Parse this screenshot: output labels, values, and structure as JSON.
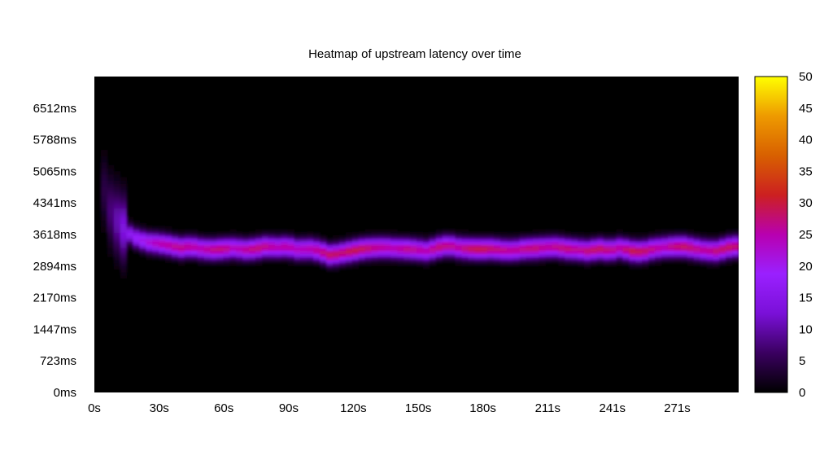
{
  "chart_data": {
    "type": "heatmap",
    "title": "Heatmap of upstream latency over time",
    "xlabel": "",
    "ylabel": "",
    "xlim": [
      0,
      300
    ],
    "ylim": [
      0,
      7236
    ],
    "x_ticks": [
      {
        "value": 0,
        "label": "0s"
      },
      {
        "value": 30.2,
        "label": "30s"
      },
      {
        "value": 60.3,
        "label": "60s"
      },
      {
        "value": 90.5,
        "label": "90s"
      },
      {
        "value": 120.6,
        "label": "120s"
      },
      {
        "value": 150.8,
        "label": "150s"
      },
      {
        "value": 180.9,
        "label": "180s"
      },
      {
        "value": 211.1,
        "label": "211s"
      },
      {
        "value": 241.2,
        "label": "241s"
      },
      {
        "value": 271.4,
        "label": "271s"
      }
    ],
    "y_ticks": [
      {
        "value": 0,
        "label": "0ms"
      },
      {
        "value": 723,
        "label": "723ms"
      },
      {
        "value": 1447,
        "label": "1447ms"
      },
      {
        "value": 2170,
        "label": "2170ms"
      },
      {
        "value": 2894,
        "label": "2894ms"
      },
      {
        "value": 3618,
        "label": "3618ms"
      },
      {
        "value": 4341,
        "label": "4341ms"
      },
      {
        "value": 5065,
        "label": "5065ms"
      },
      {
        "value": 5788,
        "label": "5788ms"
      },
      {
        "value": 6512,
        "label": "6512ms"
      }
    ],
    "colorbar": {
      "min": 0,
      "max": 50,
      "ticks": [
        "0",
        "5",
        "10",
        "15",
        "20",
        "25",
        "30",
        "35",
        "40",
        "45",
        "50"
      ],
      "colors": [
        "#000000",
        "#3a0060",
        "#7a10d8",
        "#9a20ff",
        "#b800b0",
        "#cc2020",
        "#d86000",
        "#ee9a00",
        "#ffff00"
      ]
    },
    "plot_background": "#000000",
    "band": {
      "x": [
        3,
        5,
        8,
        12,
        16,
        20,
        25,
        30,
        35,
        40,
        45,
        50,
        55,
        60,
        65,
        70,
        75,
        80,
        85,
        90,
        95,
        100,
        105,
        110,
        115,
        120,
        125,
        130,
        135,
        140,
        145,
        150,
        155,
        160,
        165,
        170,
        175,
        180,
        185,
        190,
        195,
        200,
        205,
        210,
        215,
        220,
        225,
        230,
        235,
        240,
        245,
        250,
        255,
        260,
        265,
        270,
        275,
        280,
        285,
        290,
        295,
        300
      ],
      "center_ms": [
        5000,
        4500,
        4100,
        3850,
        3650,
        3530,
        3450,
        3420,
        3380,
        3320,
        3350,
        3300,
        3280,
        3300,
        3320,
        3280,
        3300,
        3350,
        3330,
        3350,
        3280,
        3300,
        3250,
        3150,
        3200,
        3250,
        3300,
        3320,
        3330,
        3310,
        3300,
        3280,
        3250,
        3330,
        3380,
        3320,
        3300,
        3290,
        3300,
        3270,
        3260,
        3300,
        3310,
        3330,
        3340,
        3300,
        3280,
        3250,
        3300,
        3260,
        3320,
        3250,
        3230,
        3300,
        3330,
        3350,
        3350,
        3300,
        3260,
        3250,
        3330,
        3360
      ],
      "peak_count": [
        3,
        5,
        8,
        12,
        16,
        19,
        22,
        25,
        26,
        27,
        26,
        25,
        27,
        28,
        24,
        26,
        28,
        27,
        25,
        26,
        24,
        25,
        27,
        29,
        28,
        30,
        29,
        27,
        26,
        25,
        27,
        26,
        25,
        28,
        27,
        26,
        29,
        30,
        28,
        27,
        26,
        27,
        28,
        26,
        27,
        28,
        26,
        28,
        29,
        27,
        26,
        30,
        29,
        27,
        25,
        28,
        29,
        27,
        26,
        28,
        29,
        28
      ]
    },
    "grid": false,
    "legend": "colorbar-right"
  }
}
